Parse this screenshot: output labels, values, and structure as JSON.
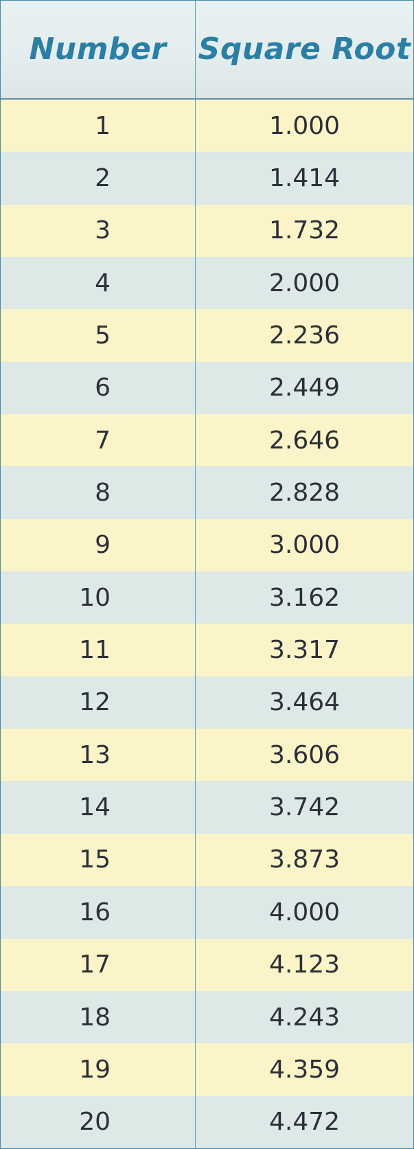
{
  "table": {
    "headers": {
      "number": "Number",
      "square_root": "Square Root"
    },
    "rows": [
      {
        "number": "1",
        "square_root": "1.000"
      },
      {
        "number": "2",
        "square_root": "1.414"
      },
      {
        "number": "3",
        "square_root": "1.732"
      },
      {
        "number": "4",
        "square_root": "2.000"
      },
      {
        "number": "5",
        "square_root": "2.236"
      },
      {
        "number": "6",
        "square_root": "2.449"
      },
      {
        "number": "7",
        "square_root": "2.646"
      },
      {
        "number": "8",
        "square_root": "2.828"
      },
      {
        "number": "9",
        "square_root": "3.000"
      },
      {
        "number": "10",
        "square_root": "3.162"
      },
      {
        "number": "11",
        "square_root": "3.317"
      },
      {
        "number": "12",
        "square_root": "3.464"
      },
      {
        "number": "13",
        "square_root": "3.606"
      },
      {
        "number": "14",
        "square_root": "3.742"
      },
      {
        "number": "15",
        "square_root": "3.873"
      },
      {
        "number": "16",
        "square_root": "4.000"
      },
      {
        "number": "17",
        "square_root": "4.123"
      },
      {
        "number": "18",
        "square_root": "4.243"
      },
      {
        "number": "19",
        "square_root": "4.359"
      },
      {
        "number": "20",
        "square_root": "4.472"
      }
    ]
  },
  "colors": {
    "header_text": "#2b7ea4",
    "row_odd": "#faf4c8",
    "row_even": "#dde9e7",
    "border": "#4a86a8",
    "cell_text": "#2c2f38"
  }
}
